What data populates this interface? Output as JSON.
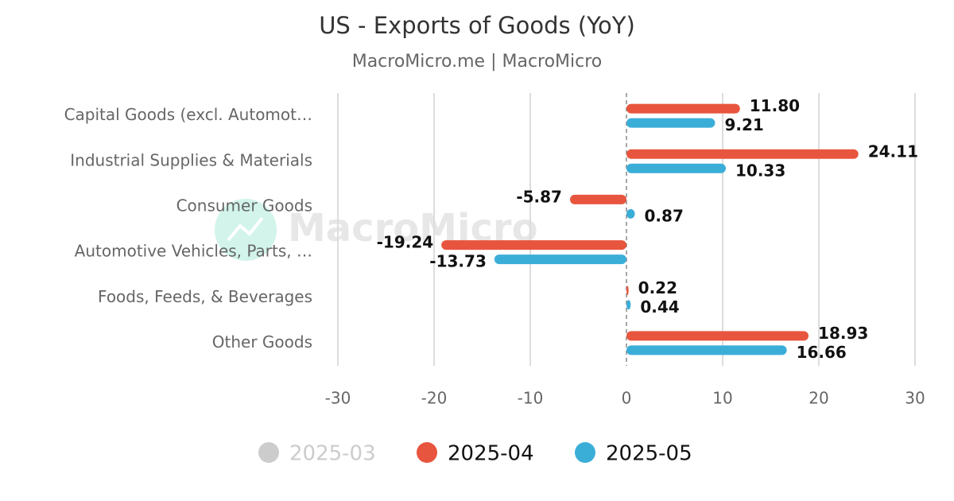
{
  "chart_data": {
    "type": "hbar",
    "title": "US - Exports of Goods (YoY)",
    "subtitle": "MacroMicro.me | MacroMicro",
    "watermark": "MacroMicro",
    "categories": [
      "Capital Goods (excl. Automot…",
      "Industrial Supplies & Materials",
      "Consumer Goods",
      "Automotive Vehicles, Parts, …",
      "Foods, Feeds, & Beverages",
      "Other Goods"
    ],
    "series": [
      {
        "name": "2025-03",
        "color": "#cccccc",
        "visible": false,
        "values": [
          null,
          null,
          null,
          null,
          null,
          null
        ]
      },
      {
        "name": "2025-04",
        "color": "#e8553e",
        "visible": true,
        "values": [
          11.8,
          24.11,
          -5.87,
          -19.24,
          0.22,
          18.93
        ],
        "value_labels": [
          "11.80",
          "24.11",
          "-5.87",
          "-19.24",
          "0.22",
          "18.93"
        ]
      },
      {
        "name": "2025-05",
        "color": "#3baed8",
        "visible": true,
        "values": [
          9.21,
          10.33,
          0.87,
          -13.73,
          0.44,
          16.66
        ],
        "value_labels": [
          "9.21",
          "10.33",
          "0.87",
          "-13.73",
          "0.44",
          "16.66"
        ]
      }
    ],
    "xlim": [
      -30,
      30
    ],
    "xticks": [
      -30,
      -20,
      -10,
      0,
      10,
      20,
      30
    ],
    "grid": true,
    "legend": "bottom"
  }
}
